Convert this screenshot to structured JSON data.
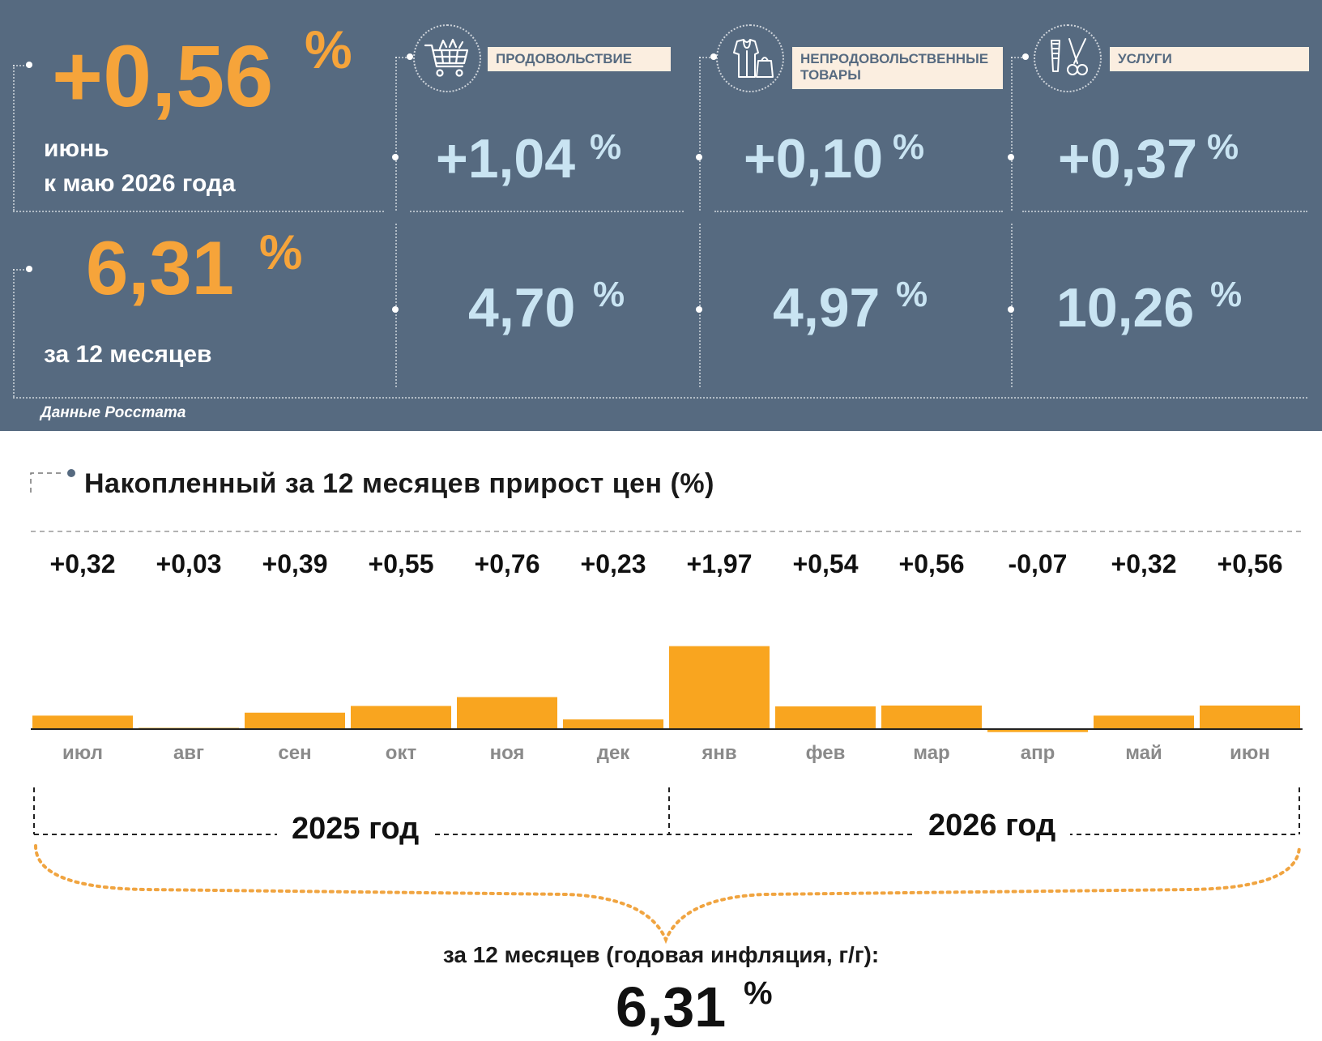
{
  "header": {
    "monthly": {
      "value": "+0,56",
      "unit": "%",
      "label_line1": "июнь",
      "label_line2": "к маю 2026 года"
    },
    "annual": {
      "value": "6,31",
      "unit": "%",
      "label": "за 12 месяцев"
    },
    "categories": [
      {
        "label": "ПРОДОВОЛЬСТВИЕ",
        "icon": "shopping-cart-icon",
        "monthly": "+1,04",
        "annual": "4,70",
        "unit": "%"
      },
      {
        "label": "НЕПРОДОВОЛЬСТВЕННЫЕ ТОВАРЫ",
        "icon": "clothing-icon",
        "monthly": "+0,10",
        "annual": "4,97",
        "unit": "%"
      },
      {
        "label": "УСЛУГИ",
        "icon": "scissors-icon",
        "monthly": "+0,37",
        "annual": "10,26",
        "unit": "%"
      }
    ],
    "source": "Данные Росстата",
    "colors": {
      "panel": "#566a80",
      "accent_orange": "#f6a43a",
      "accent_blue": "#c9e4f2",
      "label_bg": "#fbeee0"
    }
  },
  "chart_data": {
    "type": "bar",
    "title": "Накопленный за 12 месяцев прирост цен (%)",
    "categories": [
      "июл",
      "авг",
      "сен",
      "окт",
      "ноя",
      "дек",
      "янв",
      "фев",
      "мар",
      "апр",
      "май",
      "июн"
    ],
    "values": [
      0.32,
      0.03,
      0.39,
      0.55,
      0.76,
      0.23,
      1.97,
      0.54,
      0.56,
      -0.07,
      0.32,
      0.56
    ],
    "value_labels": [
      "+0,32",
      "+0,03",
      "+0,39",
      "+0,55",
      "+0,76",
      "+0,23",
      "+1,97",
      "+0,54",
      "+0,56",
      "-0,07",
      "+0,32",
      "+0,56"
    ],
    "bar_color": "#f9a51f",
    "years": [
      "2025 год",
      "2026 год"
    ],
    "summary_label": "за 12 месяцев (годовая инфляция, г/г):",
    "summary_value": "6,31",
    "summary_unit": "%"
  }
}
